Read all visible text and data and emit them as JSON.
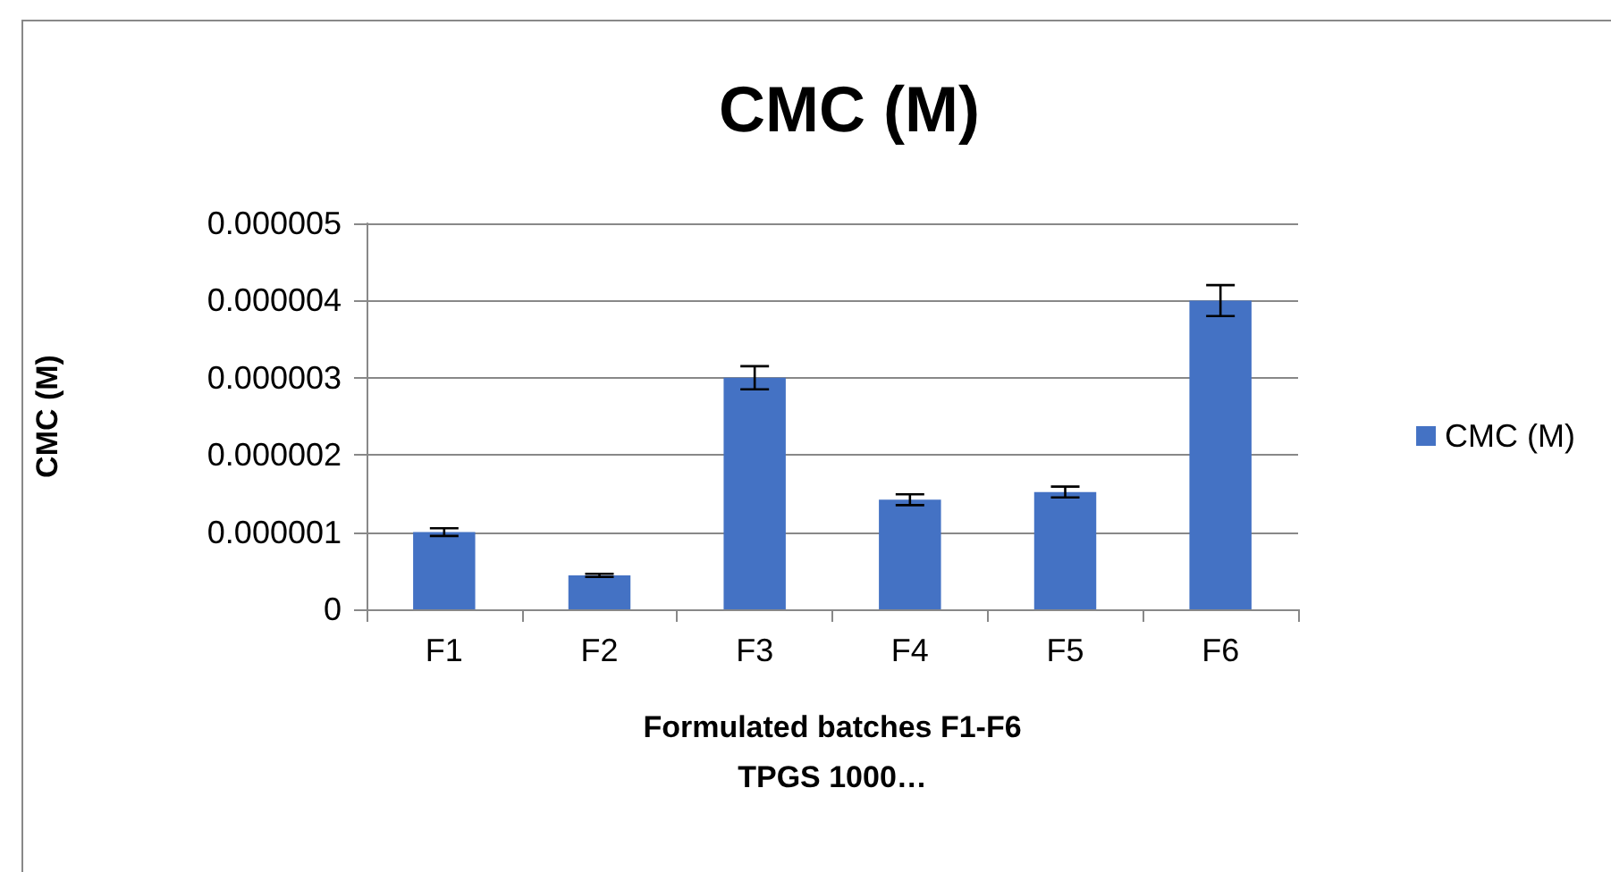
{
  "chart_data": {
    "type": "bar",
    "title": "CMC (M)",
    "xlabel": "Formulated batches F1-F6\nTPGS 1000…",
    "ylabel": "CMC (M)",
    "categories": [
      "F1",
      "F2",
      "F3",
      "F4",
      "F5",
      "F6"
    ],
    "series": [
      {
        "name": "CMC (M)",
        "color": "#4472c4",
        "values": [
          1e-06,
          4.4e-07,
          3e-06,
          1.42e-06,
          1.52e-06,
          4e-06
        ],
        "errors": [
          5e-08,
          2e-08,
          1.5e-07,
          7e-08,
          7e-08,
          2e-07
        ]
      }
    ],
    "ylim": [
      0,
      5e-06
    ],
    "yticks": [
      {
        "value": 0,
        "label": "0"
      },
      {
        "value": 1e-06,
        "label": "0.000001"
      },
      {
        "value": 2e-06,
        "label": "0.000002"
      },
      {
        "value": 3e-06,
        "label": "0.000003"
      },
      {
        "value": 4e-06,
        "label": "0.000004"
      },
      {
        "value": 5e-06,
        "label": "0.000005"
      }
    ],
    "grid": true,
    "legend": "right"
  }
}
